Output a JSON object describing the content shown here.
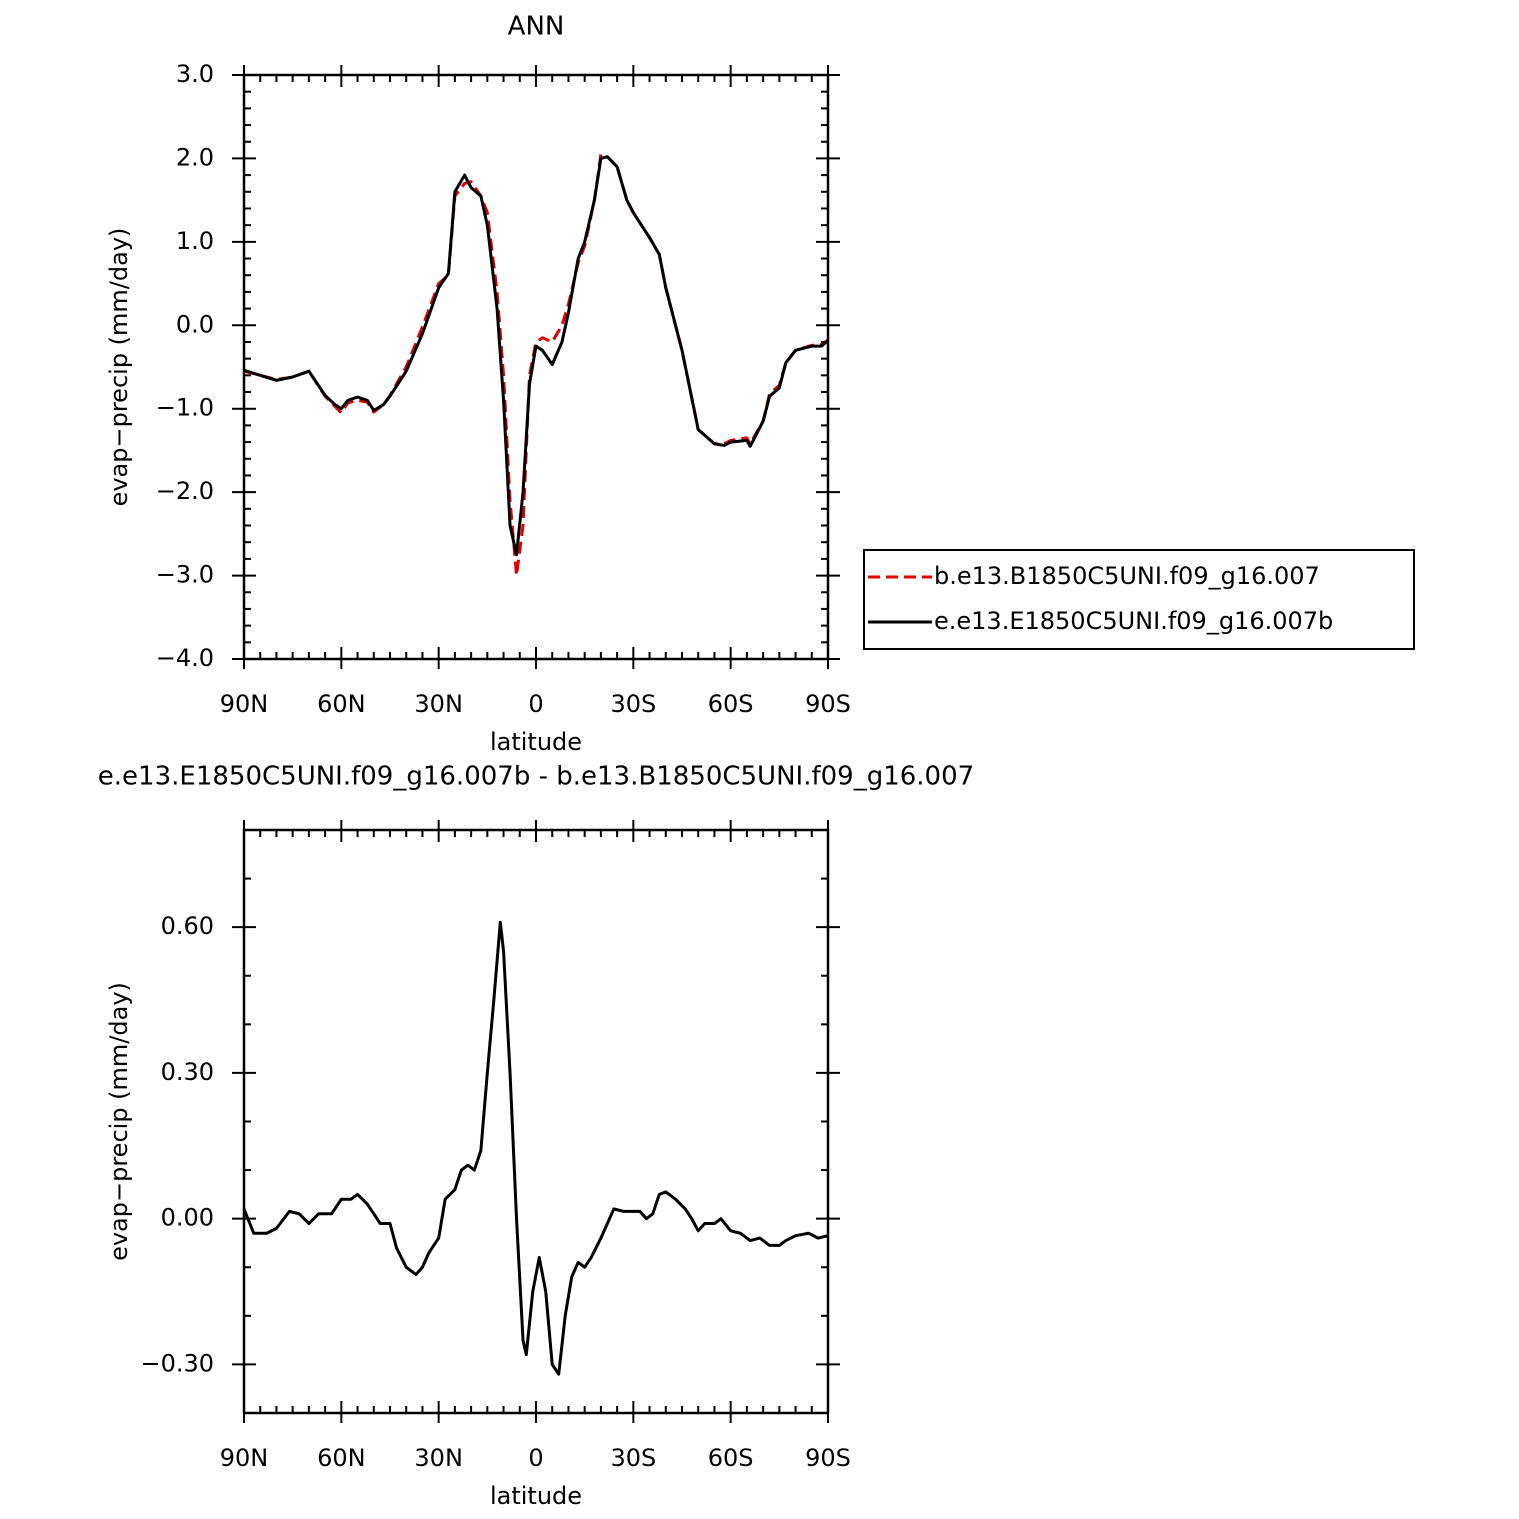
{
  "chart_data": [
    {
      "type": "line",
      "title": "ANN",
      "xlabel": "latitude",
      "ylabel": "evap−precip (mm/day)",
      "xlim": [
        90,
        -90
      ],
      "xticks": [
        {
          "value": 90,
          "label": "90N"
        },
        {
          "value": 60,
          "label": "60N"
        },
        {
          "value": 30,
          "label": "30N"
        },
        0,
        {
          "value": -30,
          "label": "30S"
        },
        {
          "value": -60,
          "label": "60S"
        },
        {
          "value": -90,
          "label": "90S"
        }
      ],
      "ylim": [
        -4,
        3
      ],
      "yticks": [
        {
          "value": -4,
          "label": "−4.0"
        },
        {
          "value": -3,
          "label": "−3.0"
        },
        {
          "value": -2,
          "label": "−2.0"
        },
        {
          "value": -1,
          "label": "−1.0"
        },
        {
          "value": 0,
          "label": "0.0"
        },
        {
          "value": 1,
          "label": "1.0"
        },
        {
          "value": 2,
          "label": "2.0"
        },
        {
          "value": 3,
          "label": "3.0"
        }
      ],
      "legend": "outside right",
      "x": [
        90,
        80,
        75,
        70,
        65,
        62,
        60,
        58,
        55,
        52,
        50,
        47,
        45,
        40,
        35,
        30,
        27,
        25,
        22,
        20,
        17,
        15,
        12,
        10,
        8,
        6,
        4,
        2,
        0,
        -2,
        -5,
        -8,
        -10,
        -13,
        -15,
        -18,
        -20,
        -22,
        -25,
        -28,
        -30,
        -35,
        -38,
        -40,
        -45,
        -50,
        -55,
        -58,
        -60,
        -65,
        -66,
        -70,
        -72,
        -75,
        -77,
        -80,
        -85,
        -88,
        -90
      ],
      "series": [
        {
          "name": "b.e13.B1850C5UNI.f09_g16.007",
          "color": "#e00000",
          "linestyle": "dashed",
          "values": [
            -0.55,
            -0.65,
            -0.62,
            -0.55,
            -0.85,
            -0.97,
            -1.05,
            -0.93,
            -0.9,
            -0.92,
            -1.04,
            -0.95,
            -0.84,
            -0.5,
            -0.02,
            0.5,
            0.6,
            1.55,
            1.7,
            1.72,
            1.55,
            1.35,
            0.4,
            -0.6,
            -2.1,
            -3.0,
            -2.4,
            -0.6,
            -0.2,
            -0.15,
            -0.2,
            0.0,
            0.25,
            0.75,
            0.95,
            1.5,
            2.05,
            2.02,
            1.9,
            1.5,
            1.35,
            1.05,
            0.85,
            0.45,
            -0.3,
            -1.25,
            -1.42,
            -1.42,
            -1.38,
            -1.35,
            -1.42,
            -1.15,
            -0.82,
            -0.72,
            -0.45,
            -0.3,
            -0.24,
            -0.23,
            -0.18
          ]
        },
        {
          "name": "e.e13.E1850C5UNI.f09_g16.007b",
          "color": "#000000",
          "linestyle": "solid",
          "values": [
            -0.54,
            -0.66,
            -0.62,
            -0.55,
            -0.84,
            -0.95,
            -1.0,
            -0.9,
            -0.86,
            -0.9,
            -1.02,
            -0.95,
            -0.85,
            -0.55,
            -0.1,
            0.45,
            0.62,
            1.6,
            1.8,
            1.65,
            1.55,
            1.2,
            0.2,
            -0.9,
            -2.4,
            -2.75,
            -2.0,
            -0.7,
            -0.25,
            -0.3,
            -0.47,
            -0.2,
            0.15,
            0.8,
            1.0,
            1.5,
            2.0,
            2.02,
            1.9,
            1.5,
            1.35,
            1.05,
            0.85,
            0.45,
            -0.3,
            -1.25,
            -1.42,
            -1.44,
            -1.4,
            -1.38,
            -1.45,
            -1.15,
            -0.85,
            -0.75,
            -0.45,
            -0.3,
            -0.25,
            -0.25,
            -0.18
          ]
        }
      ]
    },
    {
      "type": "line",
      "title": "e.e13.E1850C5UNI.f09_g16.007b - b.e13.B1850C5UNI.f09_g16.007",
      "xlabel": "latitude",
      "ylabel": "evap−precip (mm/day)",
      "xlim": [
        90,
        -90
      ],
      "xticks": [
        {
          "value": 90,
          "label": "90N"
        },
        {
          "value": 60,
          "label": "60N"
        },
        {
          "value": 30,
          "label": "30N"
        },
        0,
        {
          "value": -30,
          "label": "30S"
        },
        {
          "value": -60,
          "label": "60S"
        },
        {
          "value": -90,
          "label": "90S"
        }
      ],
      "ylim": [
        -0.4,
        0.8
      ],
      "yticks": [
        {
          "value": -0.3,
          "label": "−0.30"
        },
        {
          "value": 0,
          "label": "0.00"
        },
        {
          "value": 0.3,
          "label": "0.30"
        },
        {
          "value": 0.6,
          "label": "0.60"
        }
      ],
      "color": "#000000",
      "x": [
        90,
        87,
        83,
        80,
        76,
        73,
        70,
        67,
        63,
        60,
        57,
        55,
        52,
        48,
        45,
        43,
        40,
        37,
        35,
        33,
        30,
        28,
        25,
        23,
        21,
        19,
        17,
        15,
        13,
        11,
        10,
        8,
        6,
        4,
        3,
        1,
        -1,
        -3,
        -5,
        -7,
        -9,
        -11,
        -13,
        -15,
        -17,
        -20,
        -22,
        -24,
        -27,
        -30,
        -32,
        -34,
        -36,
        -38,
        -40,
        -43,
        -46,
        -48,
        -50,
        -52,
        -55,
        -57,
        -60,
        -63,
        -66,
        -69,
        -72,
        -75,
        -77,
        -80,
        -84,
        -87,
        -90
      ],
      "values": [
        0.02,
        -0.03,
        -0.03,
        -0.02,
        0.015,
        0.01,
        -0.01,
        0.01,
        0.01,
        0.04,
        0.04,
        0.05,
        0.03,
        -0.01,
        -0.01,
        -0.06,
        -0.1,
        -0.115,
        -0.1,
        -0.07,
        -0.04,
        0.04,
        0.06,
        0.1,
        0.11,
        0.1,
        0.14,
        0.3,
        0.45,
        0.61,
        0.55,
        0.3,
        0.0,
        -0.25,
        -0.28,
        -0.15,
        -0.08,
        -0.15,
        -0.3,
        -0.32,
        -0.2,
        -0.12,
        -0.09,
        -0.1,
        -0.08,
        -0.04,
        -0.01,
        0.02,
        0.015,
        0.015,
        0.015,
        0.0,
        0.01,
        0.05,
        0.055,
        0.04,
        0.02,
        0.0,
        -0.025,
        -0.01,
        -0.01,
        0.0,
        -0.025,
        -0.03,
        -0.045,
        -0.04,
        -0.055,
        -0.055,
        -0.045,
        -0.035,
        -0.03,
        -0.04,
        -0.035
      ]
    }
  ]
}
